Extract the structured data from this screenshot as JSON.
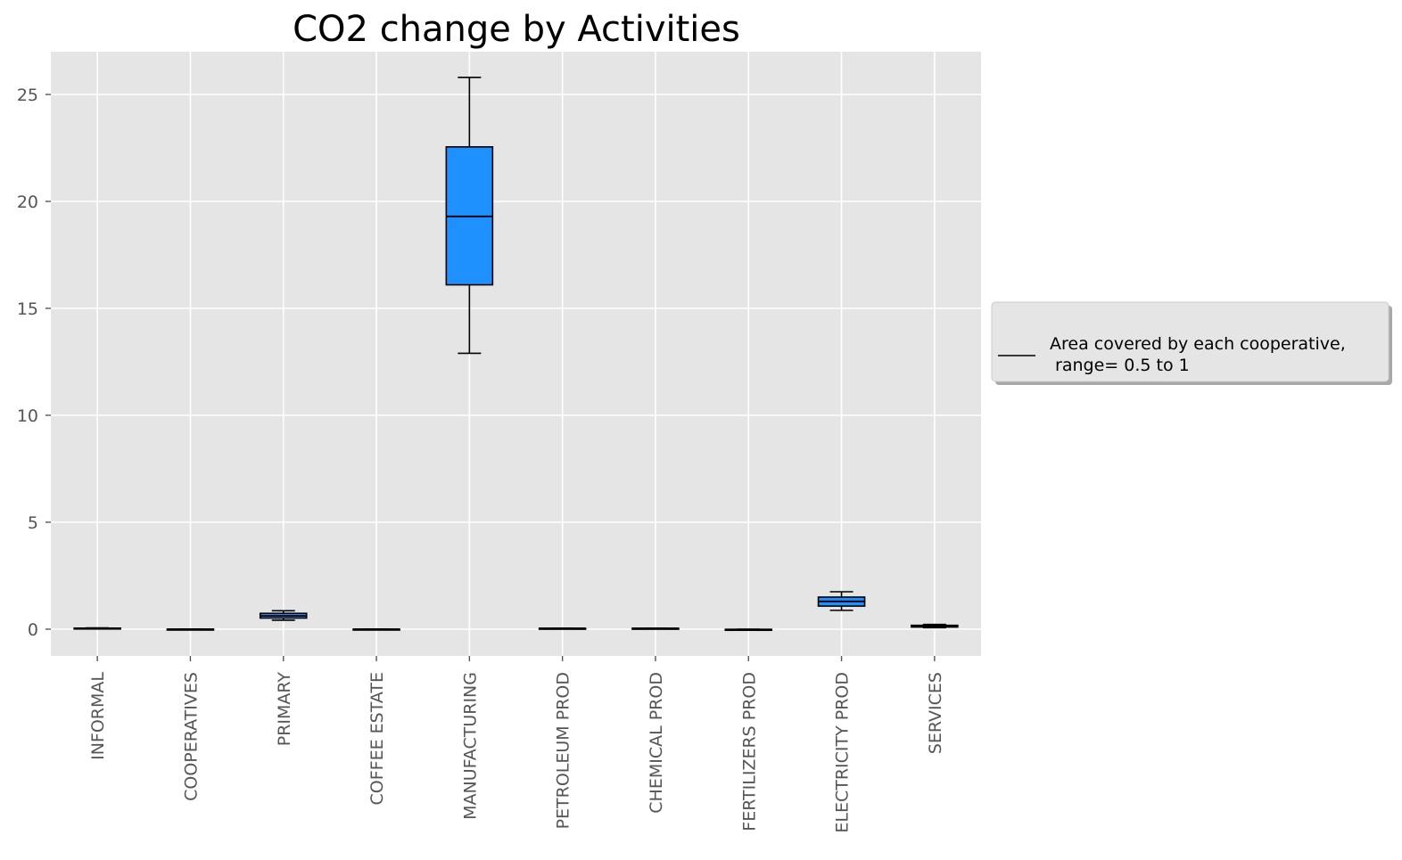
{
  "chart_data": {
    "type": "box",
    "title": "CO2 change by Activities",
    "xlabel": "",
    "ylabel": "",
    "ylim": [
      -1.25,
      27
    ],
    "yticks": [
      0,
      5,
      10,
      15,
      20,
      25
    ],
    "grid": true,
    "legend": {
      "placement": "right, outside plot area",
      "lines": [
        "Area covered by each cooperative,",
        " range= 0.5 to 1"
      ]
    },
    "colors": {
      "box_fill": "#1e90ff",
      "box_edge": "#000000",
      "plot_background": "#e5e5e5",
      "grid": "#ffffff",
      "tick_text": "#555555"
    },
    "categories": [
      "INFORMAL",
      "COOPERATIVES",
      "PRIMARY",
      "COFFEE ESTATE",
      "MANUFACTURING",
      "PETROLEUM PROD",
      "CHEMICAL PROD",
      "FERTILIZERS PROD",
      "ELECTRICITY PROD",
      "SERVICES"
    ],
    "boxes": [
      {
        "whislo": 0.01,
        "q1": 0.02,
        "med": 0.03,
        "q3": 0.05,
        "whishi": 0.06
      },
      {
        "whislo": -0.02,
        "q1": -0.01,
        "med": 0.0,
        "q3": 0.0,
        "whishi": 0.01
      },
      {
        "whislo": 0.42,
        "q1": 0.52,
        "med": 0.62,
        "q3": 0.74,
        "whishi": 0.86
      },
      {
        "whislo": -0.02,
        "q1": -0.01,
        "med": 0.0,
        "q3": 0.0,
        "whishi": 0.01
      },
      {
        "whislo": 12.9,
        "q1": 16.1,
        "med": 19.3,
        "q3": 22.55,
        "whishi": 25.8
      },
      {
        "whislo": 0.02,
        "q1": 0.03,
        "med": 0.04,
        "q3": 0.04,
        "whishi": 0.05
      },
      {
        "whislo": 0.02,
        "q1": 0.03,
        "med": 0.04,
        "q3": 0.04,
        "whishi": 0.05
      },
      {
        "whislo": -0.03,
        "q1": -0.02,
        "med": -0.01,
        "q3": -0.01,
        "whishi": 0.0
      },
      {
        "whislo": 0.88,
        "q1": 1.08,
        "med": 1.3,
        "q3": 1.5,
        "whishi": 1.75
      },
      {
        "whislo": 0.07,
        "q1": 0.1,
        "med": 0.14,
        "q3": 0.18,
        "whishi": 0.22
      }
    ]
  }
}
